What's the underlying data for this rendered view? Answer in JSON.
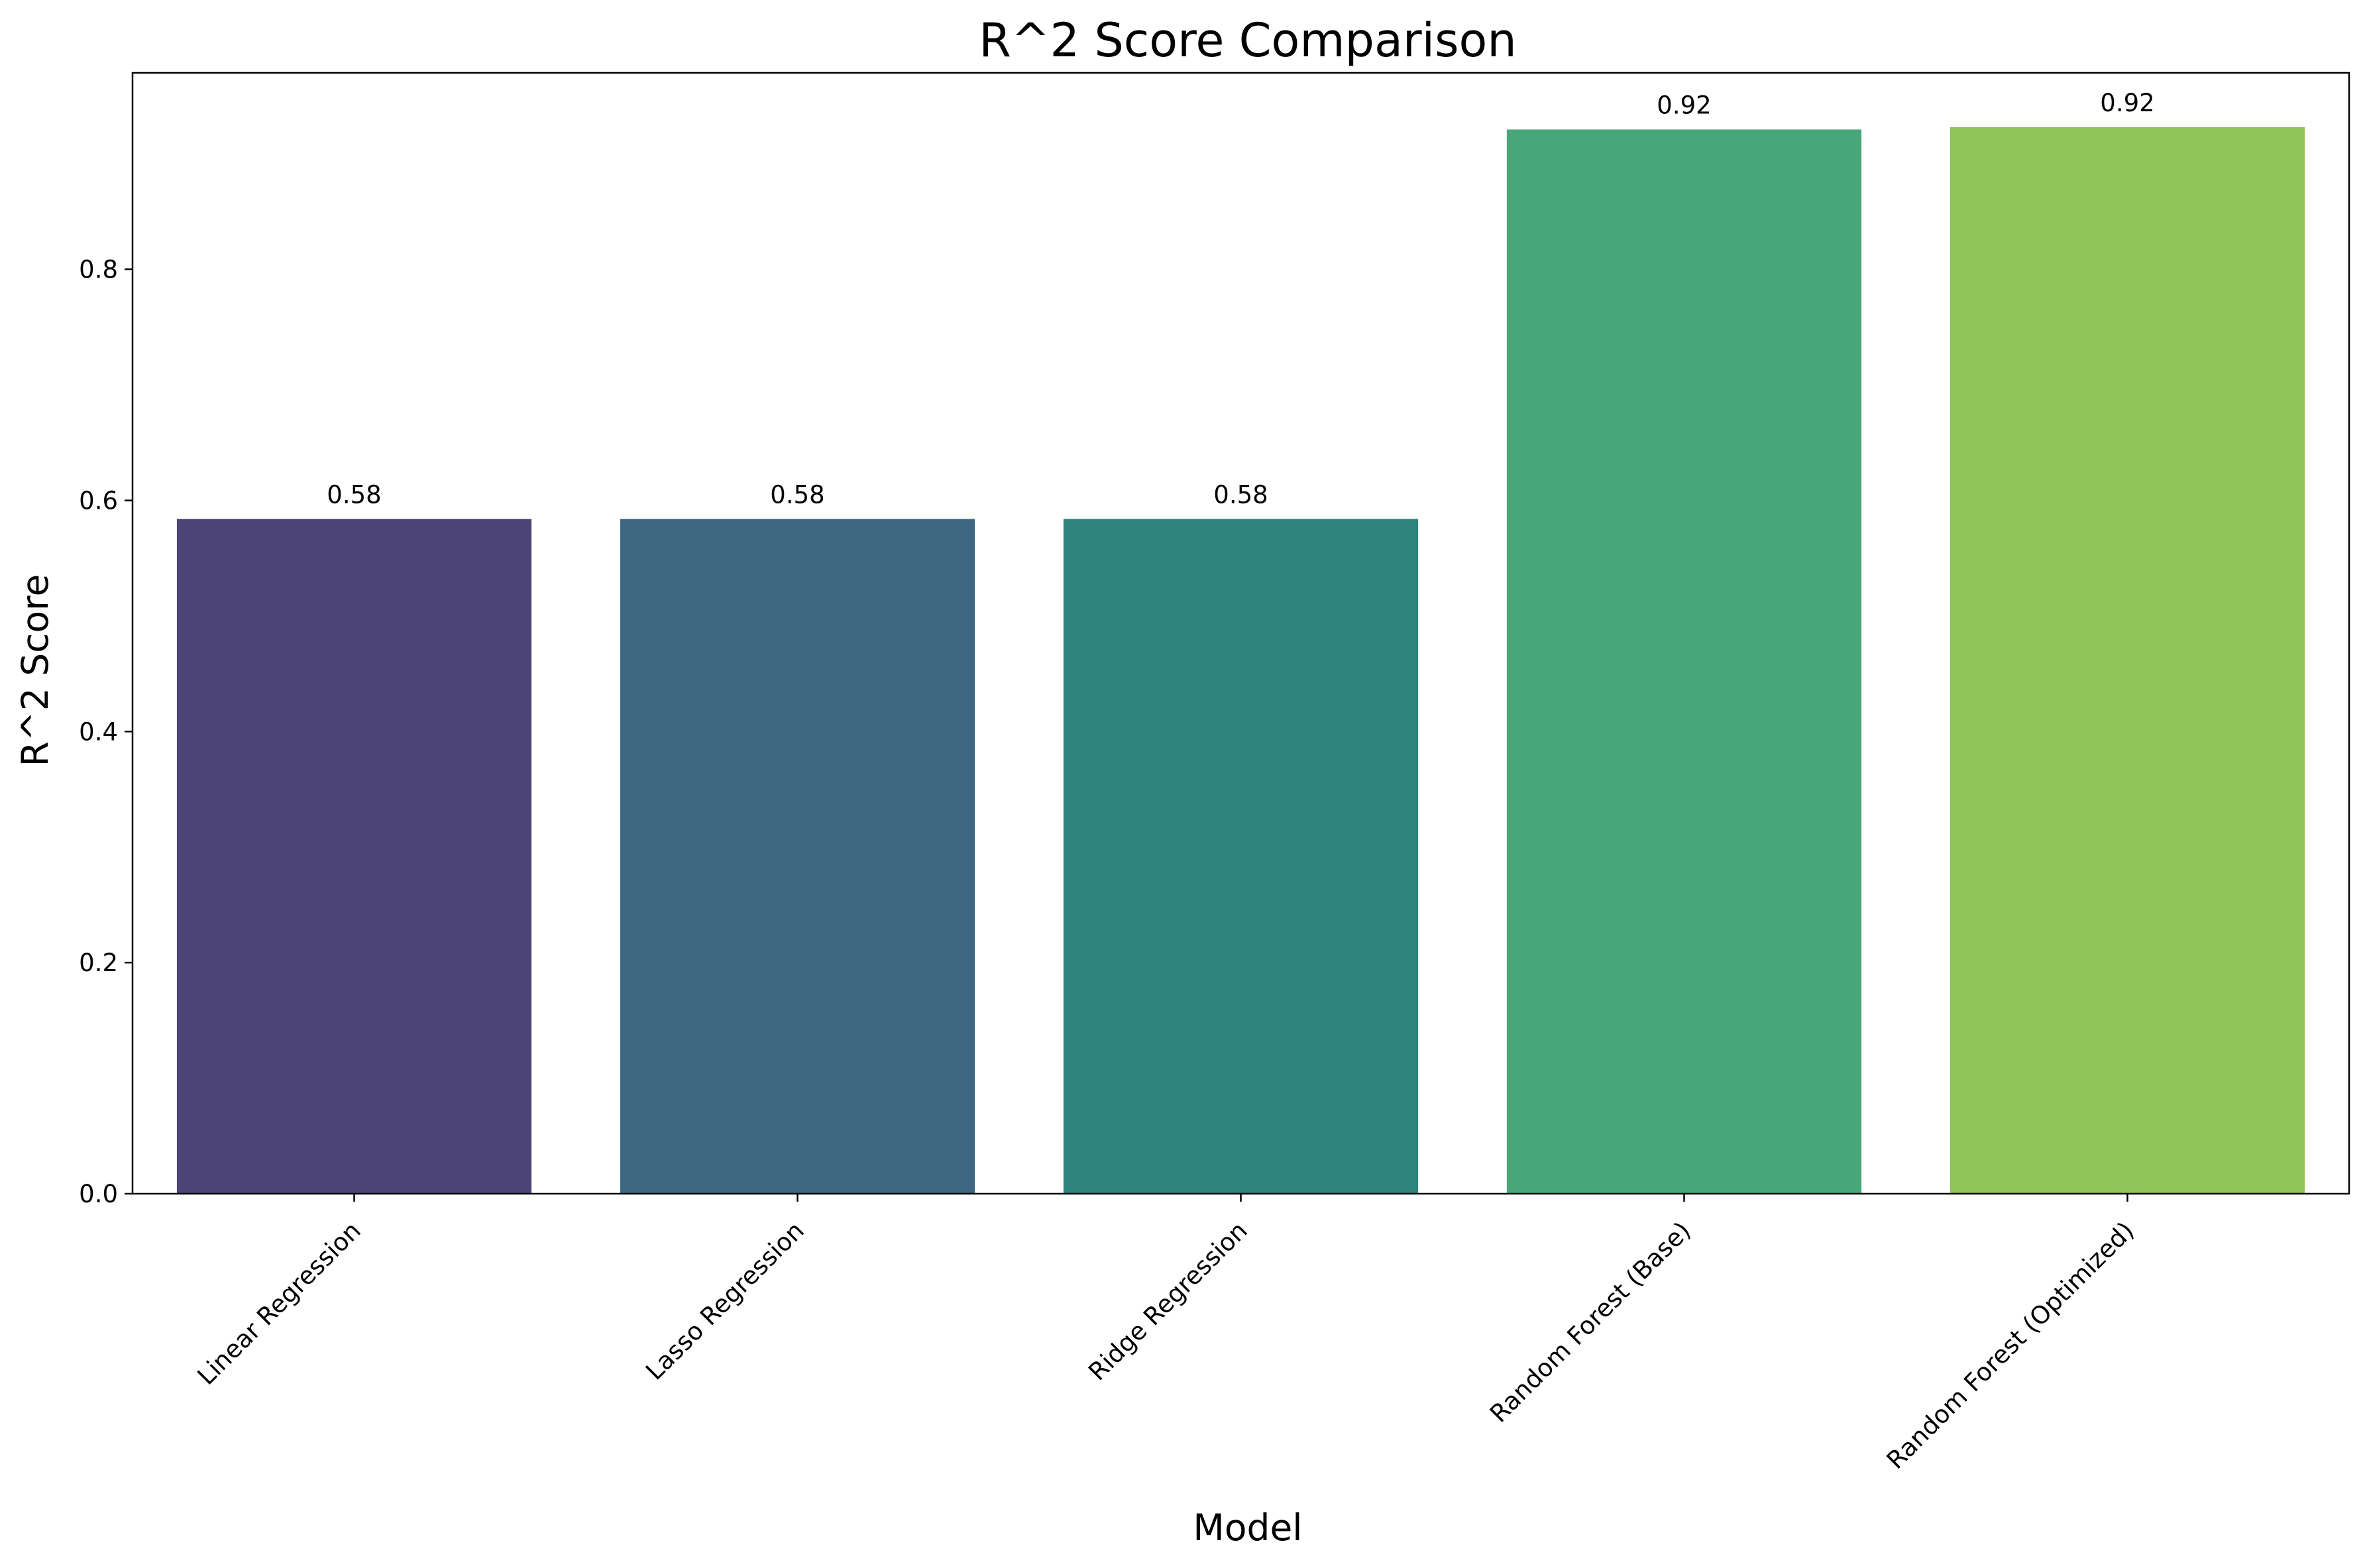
{
  "chart_data": {
    "type": "bar",
    "title": "R^2 Score Comparison",
    "xlabel": "Model",
    "ylabel": "R^2 Score",
    "categories": [
      "Linear Regression",
      "Lasso Regression",
      "Ridge Regression",
      "Random Forest (Base)",
      "Random Forest (Optimized)"
    ],
    "values": [
      0.584,
      0.584,
      0.584,
      0.921,
      0.923
    ],
    "value_labels": [
      "0.58",
      "0.58",
      "0.58",
      "0.92",
      "0.92"
    ],
    "colors": [
      "#4c4476",
      "#3f6680",
      "#2e837f",
      "#47a779",
      "#8fc456"
    ],
    "ylim": [
      0,
      0.97
    ],
    "yticks": [
      0.0,
      0.2,
      0.4,
      0.6,
      0.8
    ],
    "ytick_labels": [
      "0.0",
      "0.2",
      "0.4",
      "0.6",
      "0.8"
    ],
    "grid": false,
    "legend": "none"
  }
}
